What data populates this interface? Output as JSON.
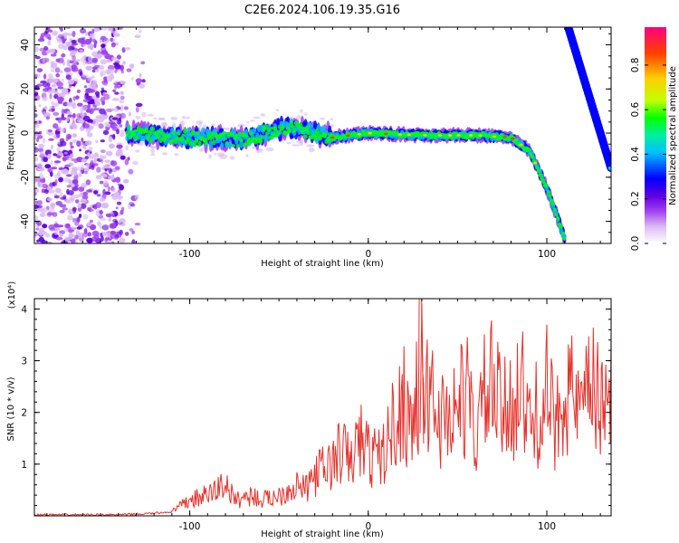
{
  "title": "C2E6.2024.106.19.35.G16",
  "chart_data": [
    {
      "type": "heatmap",
      "title": "C2E6.2024.106.19.35.G16",
      "xlabel": "Height of straight line (km)",
      "ylabel": "Frequency (Hz)",
      "xlim": [
        -187,
        136
      ],
      "ylim": [
        -50,
        48
      ],
      "xticks": [
        -100,
        0,
        100
      ],
      "yticks": [
        -40,
        -20,
        0,
        20,
        40
      ],
      "colorbar": {
        "label": "Normalized spectral amplitude",
        "range": [
          0,
          0.97
        ],
        "ticks": [
          0.0,
          0.2,
          0.4,
          0.6,
          0.8
        ],
        "tick_labels": [
          "0.0",
          "0.2",
          "0.4",
          "0.6",
          "0.8"
        ],
        "colormap": [
          "#ffffff",
          "#d9b8f5",
          "#a040f0",
          "#6000e0",
          "#0000ff",
          "#00c0ff",
          "#00f0a0",
          "#00ff00",
          "#c0ff00",
          "#ffd000",
          "#ff4000",
          "#ff0080"
        ]
      },
      "features": [
        {
          "name": "noise",
          "x_range": [
            -187,
            -125
          ],
          "y_range": [
            -50,
            48
          ]
        },
        {
          "name": "trace-band",
          "points": [
            [
              -135,
              0
            ],
            [
              -100,
              -2
            ],
            [
              -70,
              -3
            ],
            [
              -45,
              3
            ],
            [
              -20,
              -2
            ],
            [
              0,
              0
            ],
            [
              30,
              -1
            ],
            [
              60,
              -1
            ],
            [
              80,
              -2
            ],
            [
              90,
              -8
            ],
            [
              95,
              -16
            ],
            [
              100,
              -25
            ],
            [
              105,
              -36
            ],
            [
              110,
              -48
            ]
          ]
        },
        {
          "name": "steep-trace",
          "points": [
            [
              112,
              48
            ],
            [
              136,
              -16
            ]
          ]
        }
      ]
    },
    {
      "type": "line",
      "xlabel": "Height of straight line (km)",
      "ylabel": "SNR (10 * v/v)",
      "yscale_label": "(x10⁴)",
      "xlim": [
        -187,
        136
      ],
      "ylim": [
        0,
        4.2
      ],
      "xticks": [
        -100,
        0,
        100
      ],
      "yticks": [
        1,
        2,
        3,
        4
      ],
      "color": "#e8302a",
      "series": [
        {
          "x": [
            -187,
            -175,
            -160,
            -150,
            -140,
            -130,
            -120,
            -110,
            -100,
            -95,
            -90,
            -85,
            -80,
            -75,
            -70,
            -65,
            -60,
            -55,
            -50,
            -45,
            -40,
            -35,
            -30,
            -25,
            -20,
            -15,
            -10,
            -5,
            0,
            5,
            10,
            15,
            20,
            25,
            28,
            30,
            32,
            35,
            40,
            45,
            50,
            55,
            60,
            65,
            70,
            75,
            80,
            85,
            90,
            95,
            100,
            105,
            110,
            115,
            120,
            125,
            130,
            133,
            136
          ],
          "y": [
            0.02,
            0.02,
            0.02,
            0.02,
            0.02,
            0.03,
            0.05,
            0.08,
            0.3,
            0.35,
            0.4,
            0.5,
            0.65,
            0.3,
            0.35,
            0.4,
            0.3,
            0.35,
            0.4,
            0.5,
            0.6,
            0.5,
            0.8,
            0.9,
            1.0,
            1.3,
            1.0,
            1.5,
            1.2,
            1.1,
            1.3,
            1.9,
            2.2,
            1.8,
            2.4,
            4.1,
            2.2,
            2.5,
            1.8,
            2.0,
            2.1,
            2.4,
            1.5,
            2.3,
            2.5,
            1.9,
            2.2,
            2.6,
            1.7,
            2.0,
            2.4,
            1.6,
            2.7,
            2.2,
            1.9,
            2.6,
            2.0,
            2.9,
            2.4
          ]
        }
      ]
    }
  ]
}
